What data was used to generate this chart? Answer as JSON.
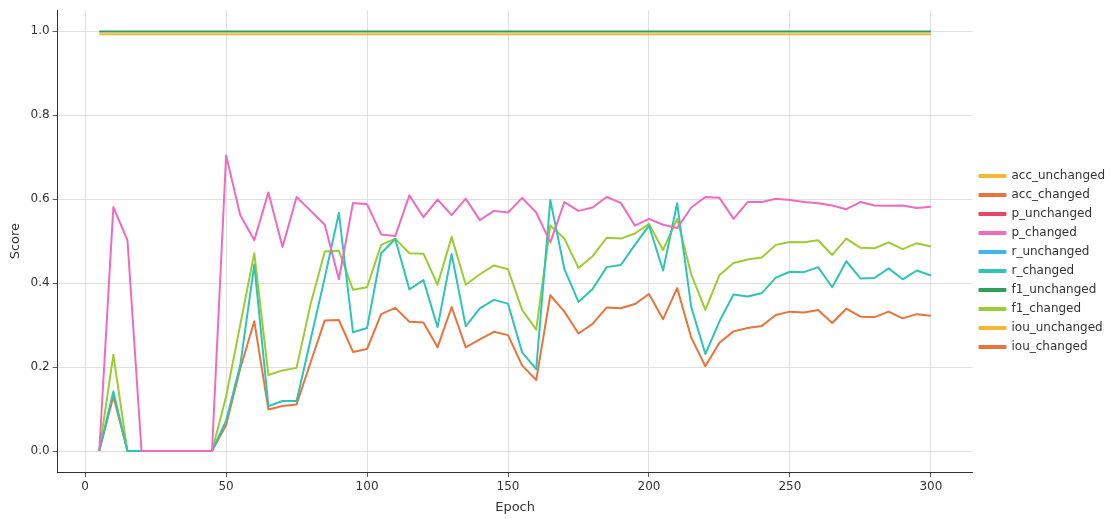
{
  "chart_data": {
    "type": "line",
    "xlabel": "Epoch",
    "ylabel": "Score",
    "x": [
      5,
      10,
      15,
      20,
      25,
      30,
      35,
      40,
      45,
      50,
      55,
      60,
      65,
      70,
      75,
      80,
      85,
      90,
      95,
      100,
      105,
      110,
      115,
      120,
      125,
      130,
      135,
      140,
      145,
      150,
      155,
      160,
      165,
      170,
      175,
      180,
      185,
      190,
      195,
      200,
      205,
      210,
      215,
      220,
      225,
      230,
      235,
      240,
      245,
      250,
      255,
      260,
      265,
      270,
      275,
      280,
      285,
      290,
      295,
      300
    ],
    "xlim": [
      -9.75,
      314.75
    ],
    "xticks": [
      0,
      50,
      100,
      150,
      200,
      250,
      300
    ],
    "ylim": [
      -0.05,
      1.05
    ],
    "yticks": [
      {
        "value": 0,
        "label": "0.0"
      },
      0.2,
      0.4,
      0.6,
      0.8,
      {
        "value": 1,
        "label": "1.0"
      }
    ],
    "grid": true,
    "legend": "right",
    "marker": "none",
    "line_style": "solid",
    "series": [
      {
        "name": "acc_unchanged",
        "color": "#f5b82e",
        "values": [
          0.993,
          0.993,
          0.993,
          0.993,
          0.993,
          0.993,
          0.993,
          0.993,
          0.993,
          0.993,
          0.993,
          0.993,
          0.993,
          0.993,
          0.993,
          0.993,
          0.993,
          0.993,
          0.993,
          0.993,
          0.993,
          0.993,
          0.993,
          0.993,
          0.993,
          0.993,
          0.993,
          0.993,
          0.993,
          0.993,
          0.993,
          0.993,
          0.993,
          0.993,
          0.993,
          0.993,
          0.993,
          0.993,
          0.993,
          0.993,
          0.993,
          0.993,
          0.993,
          0.993,
          0.993,
          0.993,
          0.993,
          0.993,
          0.993,
          0.993,
          0.993,
          0.993,
          0.993,
          0.993,
          0.993,
          0.993,
          0.993,
          0.993,
          0.993,
          0.993
        ]
      },
      {
        "name": "acc_changed",
        "color": "#e8743b",
        "values": [
          null,
          null,
          null,
          null,
          null,
          null,
          null,
          null,
          null,
          null,
          null,
          null,
          null,
          null,
          null,
          null,
          null,
          null,
          null,
          null,
          null,
          null,
          null,
          null,
          null,
          null,
          null,
          null,
          null,
          null,
          null,
          null,
          null,
          null,
          null,
          null,
          null,
          null,
          null,
          null,
          null,
          null,
          null,
          null,
          null,
          null,
          null,
          null,
          null,
          null,
          null,
          null,
          null,
          null,
          null,
          null,
          null,
          null,
          null,
          null
        ]
      },
      {
        "name": "p_unchanged",
        "color": "#e8436a",
        "values": [
          null,
          null,
          null,
          null,
          null,
          null,
          null,
          null,
          null,
          null,
          null,
          null,
          null,
          null,
          null,
          null,
          null,
          null,
          null,
          null,
          null,
          null,
          null,
          null,
          null,
          null,
          null,
          null,
          null,
          null,
          null,
          null,
          null,
          null,
          null,
          null,
          null,
          null,
          null,
          null,
          null,
          null,
          null,
          null,
          null,
          null,
          null,
          null,
          null,
          null,
          null,
          null,
          null,
          null,
          null,
          null,
          null,
          null,
          null,
          null
        ]
      },
      {
        "name": "p_changed",
        "color": "#f06ac0",
        "values": [
          0,
          0.581,
          0.502,
          0,
          0,
          0,
          0,
          0,
          0,
          0.704,
          0.562,
          0.502,
          0.616,
          0.486,
          0.605,
          0.572,
          0.539,
          0.409,
          0.591,
          0.588,
          0.516,
          0.512,
          0.609,
          0.557,
          0.599,
          0.562,
          0.601,
          0.55,
          0.572,
          0.568,
          0.603,
          0.568,
          0.497,
          0.593,
          0.572,
          0.58,
          0.605,
          0.591,
          0.537,
          0.553,
          0.539,
          0.531,
          0.58,
          0.605,
          0.603,
          0.553,
          0.593,
          0.593,
          0.601,
          0.598,
          0.593,
          0.59,
          0.585,
          0.576,
          0.593,
          0.585,
          0.584,
          0.585,
          0.579,
          0.582
        ]
      },
      {
        "name": "r_unchanged",
        "color": "#3db8e8",
        "values": [
          null,
          null,
          null,
          null,
          null,
          null,
          null,
          null,
          null,
          null,
          null,
          null,
          null,
          null,
          null,
          null,
          null,
          null,
          null,
          null,
          null,
          null,
          null,
          null,
          null,
          null,
          null,
          null,
          null,
          null,
          null,
          null,
          null,
          null,
          null,
          null,
          null,
          null,
          null,
          null,
          null,
          null,
          null,
          null,
          null,
          null,
          null,
          null,
          null,
          null,
          null,
          null,
          null,
          null,
          null,
          null,
          null,
          null,
          null,
          null
        ]
      },
      {
        "name": "r_changed",
        "color": "#2ec4b6",
        "values": [
          0,
          0.142,
          0,
          0,
          0,
          0,
          0,
          0,
          0,
          0.072,
          0.204,
          0.444,
          0.107,
          0.119,
          0.119,
          0.266,
          0.413,
          0.567,
          0.283,
          0.293,
          0.471,
          0.505,
          0.385,
          0.407,
          0.295,
          0.469,
          0.297,
          0.34,
          0.36,
          0.351,
          0.235,
          0.195,
          0.598,
          0.433,
          0.355,
          0.386,
          0.438,
          0.443,
          0.491,
          0.537,
          0.43,
          0.59,
          0.343,
          0.231,
          0.309,
          0.373,
          0.368,
          0.376,
          0.413,
          0.427,
          0.426,
          0.438,
          0.39,
          0.452,
          0.411,
          0.412,
          0.435,
          0.409,
          0.43,
          0.418
        ]
      },
      {
        "name": "f1_unchanged",
        "color": "#2ca05a",
        "values": [
          0.999,
          0.999,
          0.999,
          0.999,
          0.999,
          0.999,
          0.999,
          0.999,
          0.999,
          0.999,
          0.999,
          0.999,
          0.999,
          0.999,
          0.999,
          0.999,
          0.999,
          0.999,
          0.999,
          0.999,
          0.999,
          0.999,
          0.999,
          0.999,
          0.999,
          0.999,
          0.999,
          0.999,
          0.999,
          0.999,
          0.999,
          0.999,
          0.999,
          0.999,
          0.999,
          0.999,
          0.999,
          0.999,
          0.999,
          0.999,
          0.999,
          0.999,
          0.999,
          0.999,
          0.999,
          0.999,
          0.999,
          0.999,
          0.999,
          0.999,
          0.999,
          0.999,
          0.999,
          0.999,
          0.999,
          0.999,
          0.999,
          0.999,
          0.999,
          0.999
        ]
      },
      {
        "name": "f1_changed",
        "color": "#9acd32",
        "values": [
          0,
          0.229,
          0,
          0,
          0,
          0,
          0,
          0,
          0,
          0.13,
          0.3,
          0.471,
          0.181,
          0.192,
          0.198,
          0.351,
          0.475,
          0.477,
          0.384,
          0.39,
          0.491,
          0.506,
          0.471,
          0.47,
          0.396,
          0.51,
          0.396,
          0.421,
          0.442,
          0.433,
          0.336,
          0.289,
          0.537,
          0.506,
          0.436,
          0.464,
          0.508,
          0.506,
          0.518,
          0.541,
          0.479,
          0.553,
          0.421,
          0.336,
          0.419,
          0.448,
          0.456,
          0.461,
          0.491,
          0.498,
          0.497,
          0.502,
          0.467,
          0.506,
          0.484,
          0.483,
          0.497,
          0.481,
          0.495,
          0.487
        ]
      },
      {
        "name": "iou_unchanged",
        "color": "#f5b82e",
        "values": [
          null,
          null,
          null,
          null,
          null,
          null,
          null,
          null,
          null,
          null,
          null,
          null,
          null,
          null,
          null,
          null,
          null,
          null,
          null,
          null,
          null,
          null,
          null,
          null,
          null,
          null,
          null,
          null,
          null,
          null,
          null,
          null,
          null,
          null,
          null,
          null,
          null,
          null,
          null,
          null,
          null,
          null,
          null,
          null,
          null,
          null,
          null,
          null,
          null,
          null,
          null,
          null,
          null,
          null,
          null,
          null,
          null,
          null,
          null,
          null
        ]
      },
      {
        "name": "iou_changed",
        "color": "#e8743b",
        "values": [
          0,
          0.13,
          0,
          0,
          0,
          0,
          0,
          0,
          0,
          0.062,
          0.196,
          0.309,
          0.099,
          0.107,
          0.111,
          0.212,
          0.311,
          0.312,
          0.236,
          0.243,
          0.326,
          0.341,
          0.308,
          0.306,
          0.247,
          0.343,
          0.247,
          0.266,
          0.284,
          0.276,
          0.204,
          0.169,
          0.371,
          0.332,
          0.28,
          0.303,
          0.342,
          0.34,
          0.35,
          0.374,
          0.314,
          0.388,
          0.27,
          0.202,
          0.258,
          0.285,
          0.293,
          0.298,
          0.324,
          0.332,
          0.33,
          0.336,
          0.305,
          0.339,
          0.32,
          0.319,
          0.332,
          0.316,
          0.326,
          0.322
        ]
      }
    ]
  }
}
